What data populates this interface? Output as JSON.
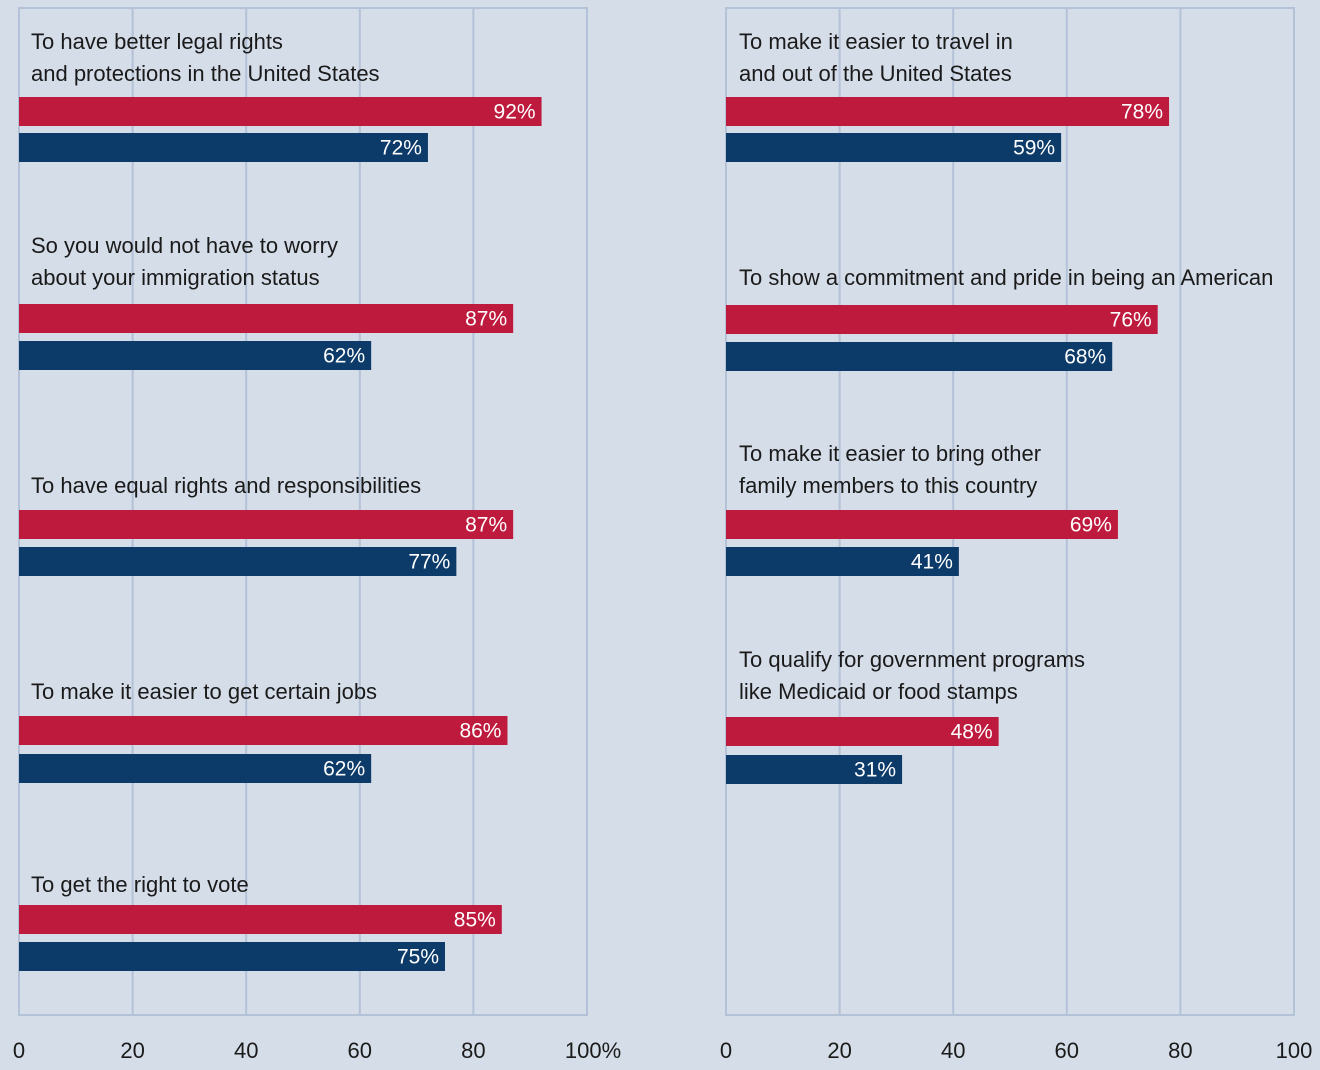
{
  "colors": {
    "series_a": "#be1a3d",
    "series_b": "#0c3a69",
    "background": "#d5dde9",
    "grid": "#b3c2d6"
  },
  "chart_data": [
    {
      "type": "bar",
      "orientation": "horizontal",
      "categories": [
        [
          "To have better legal rights",
          "and protections in the United States"
        ],
        [
          "So you would not have to worry",
          "about your immigration status"
        ],
        [
          "To have equal rights and responsibilities"
        ],
        [
          "To make it easier to get certain jobs"
        ],
        [
          "To get the right to vote"
        ]
      ],
      "series": [
        {
          "values": [
            92,
            87,
            87,
            86,
            85
          ]
        },
        {
          "values": [
            72,
            62,
            77,
            62,
            75
          ]
        }
      ],
      "value_labels": [
        [
          "92%",
          "87%",
          "87%",
          "86%",
          "85%"
        ],
        [
          "72%",
          "62%",
          "77%",
          "62%",
          "75%"
        ]
      ],
      "xlim": [
        0,
        100
      ],
      "xticks": [
        "0",
        "20",
        "40",
        "60",
        "80",
        "100%"
      ],
      "grid": true
    },
    {
      "type": "bar",
      "orientation": "horizontal",
      "categories": [
        [
          "To make it easier to travel in",
          "and out of the United States"
        ],
        [
          "To show a commitment and pride in being an American"
        ],
        [
          "To make it easier to bring other",
          "family members to this country"
        ],
        [
          "To qualify for government programs",
          "like Medicaid or food stamps"
        ]
      ],
      "series": [
        {
          "values": [
            78,
            76,
            69,
            48
          ]
        },
        {
          "values": [
            59,
            68,
            41,
            31
          ]
        }
      ],
      "value_labels": [
        [
          "78%",
          "76%",
          "69%",
          "48%"
        ],
        [
          "59%",
          "68%",
          "41%",
          "31%"
        ]
      ],
      "xlim": [
        0,
        100
      ],
      "xticks": [
        "0",
        "20",
        "40",
        "60",
        "80",
        "100"
      ],
      "grid": true
    }
  ]
}
